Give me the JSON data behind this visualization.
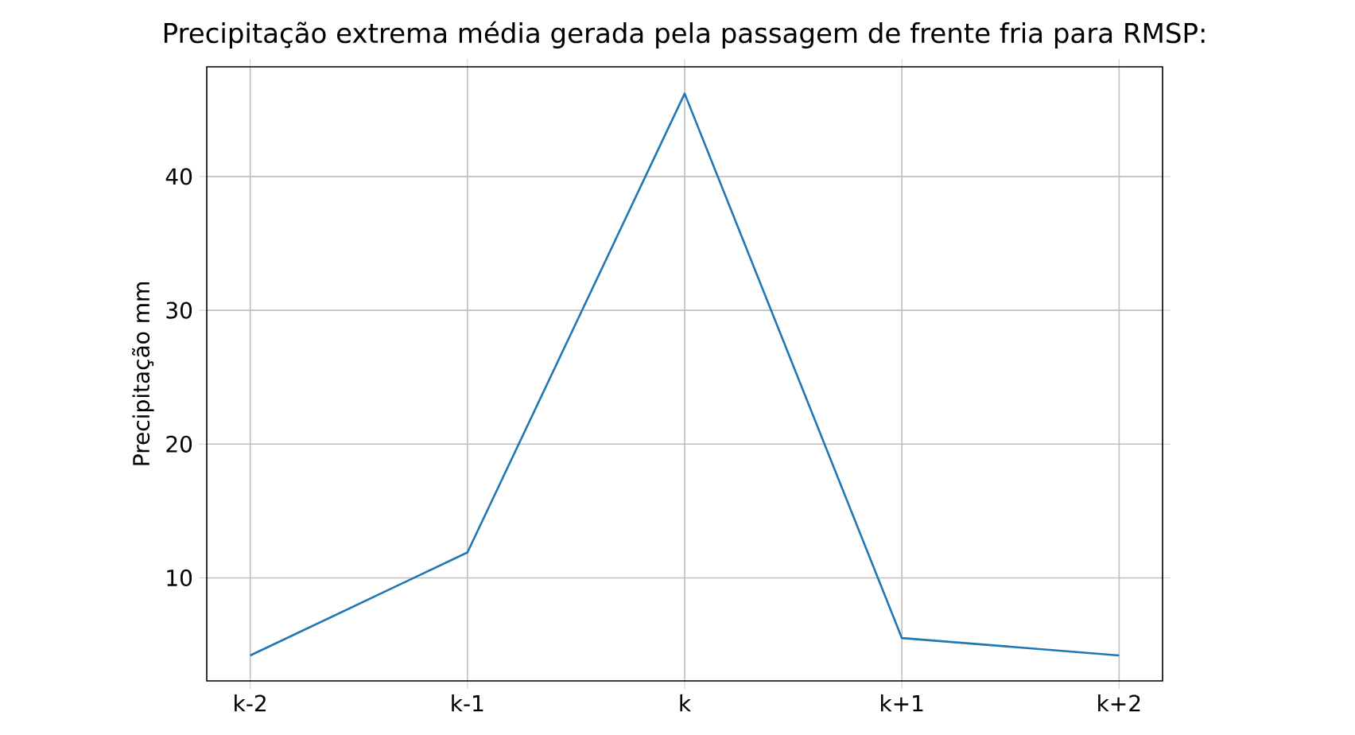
{
  "chart_data": {
    "type": "line",
    "title": "Precipitação extrema média gerada pela passagem de frente fria para RMSP:",
    "ylabel": "Precipitação mm",
    "categories": [
      "k-2",
      "k-1",
      "k",
      "k+1",
      "k+2"
    ],
    "series": [
      {
        "color": "#1f77b4",
        "values": [
          4.2,
          11.9,
          46.2,
          5.5,
          4.2
        ]
      }
    ],
    "ylim": [
      2.3,
      48.2
    ],
    "yticks": [
      10,
      20,
      30,
      40
    ],
    "grid": true,
    "marker": "none",
    "line_style": "solid"
  }
}
